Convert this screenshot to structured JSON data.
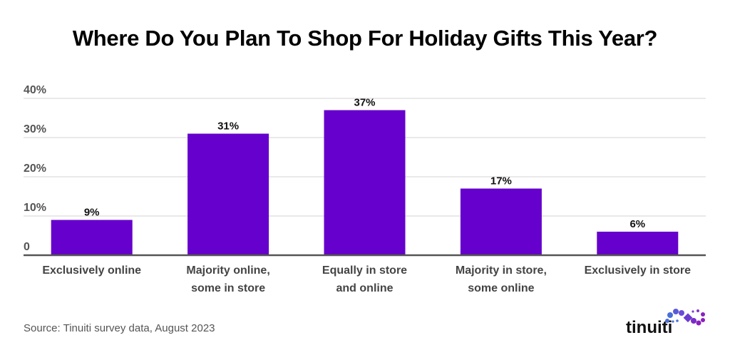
{
  "chart_data": {
    "type": "bar",
    "title": "Where Do You Plan To Shop For Holiday Gifts This Year?",
    "categories": [
      [
        "Exclusively online"
      ],
      [
        "Majority online,",
        "some in store"
      ],
      [
        "Equally in store",
        "and online"
      ],
      [
        "Majority in store,",
        "some online"
      ],
      [
        "Exclusively in store"
      ]
    ],
    "values": [
      9,
      31,
      37,
      17,
      6
    ],
    "data_labels": [
      "9%",
      "31%",
      "37%",
      "17%",
      "6%"
    ],
    "yticks": [
      0,
      10,
      20,
      30,
      40
    ],
    "ytick_labels": [
      "0",
      "10%",
      "20%",
      "30%",
      "40%"
    ],
    "ylim": [
      0,
      40
    ],
    "xlabel": "",
    "ylabel": "",
    "grid": true,
    "bar_color": "#6600CC"
  },
  "source": "Source: Tinuiti survey data, August 2023",
  "logo": "tinuiti"
}
